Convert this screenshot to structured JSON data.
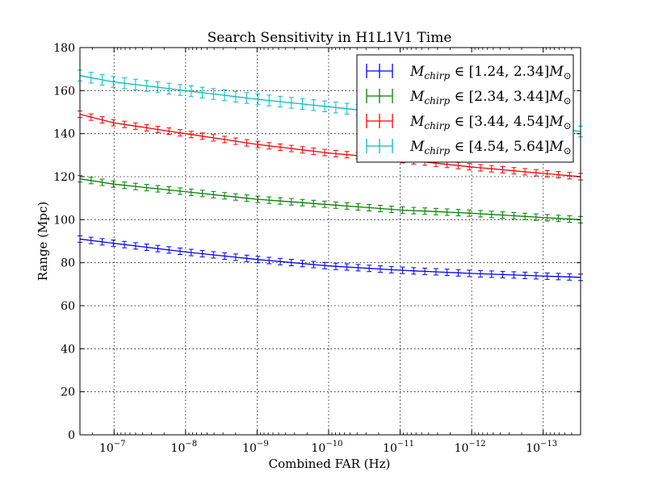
{
  "chart_data": {
    "type": "line",
    "title": "Search Sensitivity in H1L1V1 Time",
    "xlabel": "Combined FAR (Hz)",
    "ylabel": "Range (Mpc)",
    "xscale": "log, reversed",
    "xlim": [
      3e-07,
      3e-14
    ],
    "ylim": [
      0,
      180
    ],
    "grid": true,
    "legend_position": "upper-right",
    "y_ticks": [
      "0",
      "20",
      "40",
      "60",
      "80",
      "100",
      "120",
      "140",
      "160",
      "180"
    ],
    "x_ticks": [
      {
        "value": 1e-07,
        "base": "10",
        "exp": "−7"
      },
      {
        "value": 1e-08,
        "base": "10",
        "exp": "−8"
      },
      {
        "value": 1e-09,
        "base": "10",
        "exp": "−9"
      },
      {
        "value": 1e-10,
        "base": "10",
        "exp": "−10"
      },
      {
        "value": 1e-11,
        "base": "10",
        "exp": "−11"
      },
      {
        "value": 1e-12,
        "base": "10",
        "exp": "−12"
      },
      {
        "value": 1e-13,
        "base": "10",
        "exp": "−13"
      }
    ],
    "series": [
      {
        "name": "M_chirp ∈ [1.24, 2.34] M⊙",
        "legend": {
          "pre": "M",
          "sub": "chirp",
          "post": " ∈ [1.24, 2.34]M",
          "sun": "⊙"
        },
        "color": "#0000ff",
        "error": 1.5,
        "x": [
          3e-07,
          1e-07,
          1e-08,
          1e-09,
          1e-10,
          1e-11,
          1e-12,
          1e-13,
          3e-14
        ],
        "y": [
          91,
          89,
          85,
          81.5,
          78.5,
          76.5,
          75,
          73.8,
          73.2
        ]
      },
      {
        "name": "M_chirp ∈ [2.34, 3.44] M⊙",
        "legend": {
          "pre": "M",
          "sub": "chirp",
          "post": " ∈ [2.34, 3.44]M",
          "sun": "⊙"
        },
        "color": "#008000",
        "error": 1.5,
        "x": [
          3e-07,
          1e-07,
          1e-08,
          1e-09,
          1e-10,
          1e-11,
          1e-12,
          1e-13,
          3e-14
        ],
        "y": [
          119,
          116.5,
          113,
          109.5,
          107,
          104.5,
          103,
          101,
          100
        ]
      },
      {
        "name": "M_chirp ∈ [3.44, 4.54] M⊙",
        "legend": {
          "pre": "M",
          "sub": "chirp",
          "post": " ∈ [3.44, 4.54]M",
          "sun": "⊙"
        },
        "color": "#ff0000",
        "error": 1.5,
        "x": [
          3e-07,
          1e-07,
          1e-08,
          1e-09,
          1e-10,
          1e-11,
          1e-12,
          1e-13,
          3e-14
        ],
        "y": [
          149,
          145,
          140,
          135,
          131,
          128,
          124.5,
          121.5,
          120
        ]
      },
      {
        "name": "M_chirp ∈ [4.54, 5.64] M⊙",
        "legend": {
          "pre": "M",
          "sub": "chirp",
          "post": " ∈ [4.54, 5.64]M",
          "sun": "⊙"
        },
        "color": "#00bfbf",
        "error": 2.5,
        "x": [
          3e-07,
          1e-07,
          1e-08,
          1e-09,
          1e-10,
          1e-11,
          1e-12,
          1e-13,
          3e-14
        ],
        "y": [
          167,
          164,
          160,
          156,
          152.5,
          149,
          146,
          143,
          141
        ]
      }
    ]
  }
}
